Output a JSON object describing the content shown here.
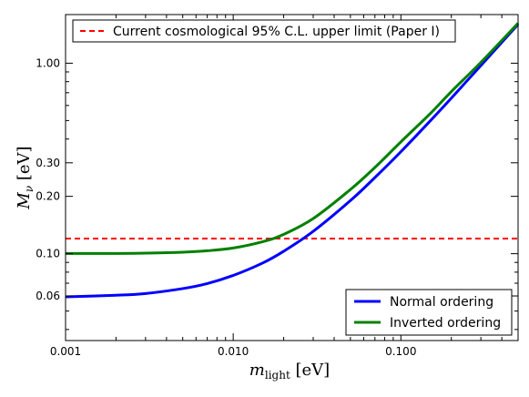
{
  "chart_data": {
    "type": "line",
    "xlabel": "m_light [eV]",
    "ylabel": "M_ν [eV]",
    "xscale": "log",
    "yscale": "log",
    "xlim": [
      0.001,
      0.5
    ],
    "ylim": [
      0.035,
      1.8
    ],
    "grid": false,
    "x_ticks": [
      {
        "value": 0.001,
        "label": "0.001"
      },
      {
        "value": 0.01,
        "label": "0.010"
      },
      {
        "value": 0.1,
        "label": "0.100"
      }
    ],
    "y_ticks": [
      {
        "value": 0.06,
        "label": "0.06"
      },
      {
        "value": 0.1,
        "label": "0.10"
      },
      {
        "value": 0.2,
        "label": "0.20"
      },
      {
        "value": 0.3,
        "label": "0.30"
      },
      {
        "value": 1.0,
        "label": "1.00"
      }
    ],
    "hline": {
      "name": "Current cosmological 95% C.L. upper limit (Paper I)",
      "y": 0.12,
      "color": "#ff0000",
      "style": "dashed",
      "legend_position": "top-left"
    },
    "series": [
      {
        "name": "Normal ordering",
        "color": "#0000ff",
        "x": [
          0.001,
          0.002,
          0.003,
          0.005,
          0.007,
          0.01,
          0.015,
          0.02,
          0.03,
          0.05,
          0.07,
          0.1,
          0.15,
          0.2,
          0.3,
          0.5
        ],
        "y": [
          0.0594,
          0.0605,
          0.0618,
          0.0656,
          0.0697,
          0.0769,
          0.0894,
          0.103,
          0.131,
          0.19,
          0.251,
          0.343,
          0.499,
          0.656,
          0.972,
          1.6
        ]
      },
      {
        "name": "Inverted ordering",
        "color": "#008000",
        "x": [
          0.001,
          0.002,
          0.003,
          0.005,
          0.007,
          0.01,
          0.015,
          0.02,
          0.03,
          0.05,
          0.07,
          0.1,
          0.15,
          0.2,
          0.3,
          0.5
        ],
        "y": [
          0.1002,
          0.1003,
          0.1007,
          0.1018,
          0.1036,
          0.1071,
          0.1156,
          0.1263,
          0.1529,
          0.2172,
          0.2837,
          0.3865,
          0.5449,
          0.7101,
          1.01,
          1.62
        ]
      }
    ],
    "series_legend_position": "bottom-right"
  }
}
